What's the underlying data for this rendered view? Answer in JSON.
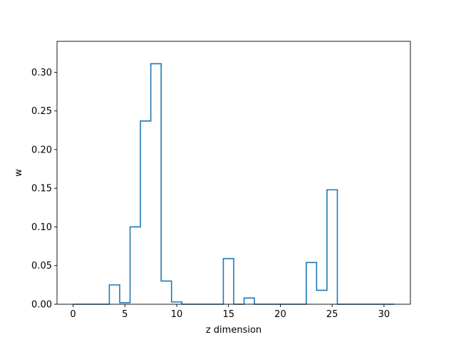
{
  "chart_data": {
    "type": "step",
    "title": "",
    "xlabel": "z dimension",
    "ylabel": "w",
    "xlim": [
      -1.55,
      32.55
    ],
    "ylim": [
      0,
      0.34
    ],
    "xticks": [
      0,
      5,
      10,
      15,
      20,
      25,
      30
    ],
    "yticks": [
      0.0,
      0.05,
      0.1,
      0.15,
      0.2,
      0.25,
      0.3
    ],
    "ytick_labels": [
      "0.00",
      "0.05",
      "0.10",
      "0.15",
      "0.20",
      "0.25",
      "0.30"
    ],
    "grid": false,
    "legend": "none",
    "color": "#1f77b4",
    "x": [
      0,
      1,
      2,
      3,
      4,
      5,
      6,
      7,
      8,
      9,
      10,
      11,
      12,
      13,
      14,
      15,
      16,
      17,
      18,
      19,
      20,
      21,
      22,
      23,
      24,
      25,
      26,
      27,
      28,
      29,
      30,
      31
    ],
    "values": [
      0,
      0,
      0,
      0,
      0.025,
      0.002,
      0.1,
      0.237,
      0.311,
      0.03,
      0.003,
      0,
      0,
      0,
      0,
      0.059,
      0,
      0.008,
      0,
      0,
      0,
      0,
      0,
      0.054,
      0.018,
      0.148,
      0,
      0,
      0,
      0,
      0,
      0
    ]
  }
}
